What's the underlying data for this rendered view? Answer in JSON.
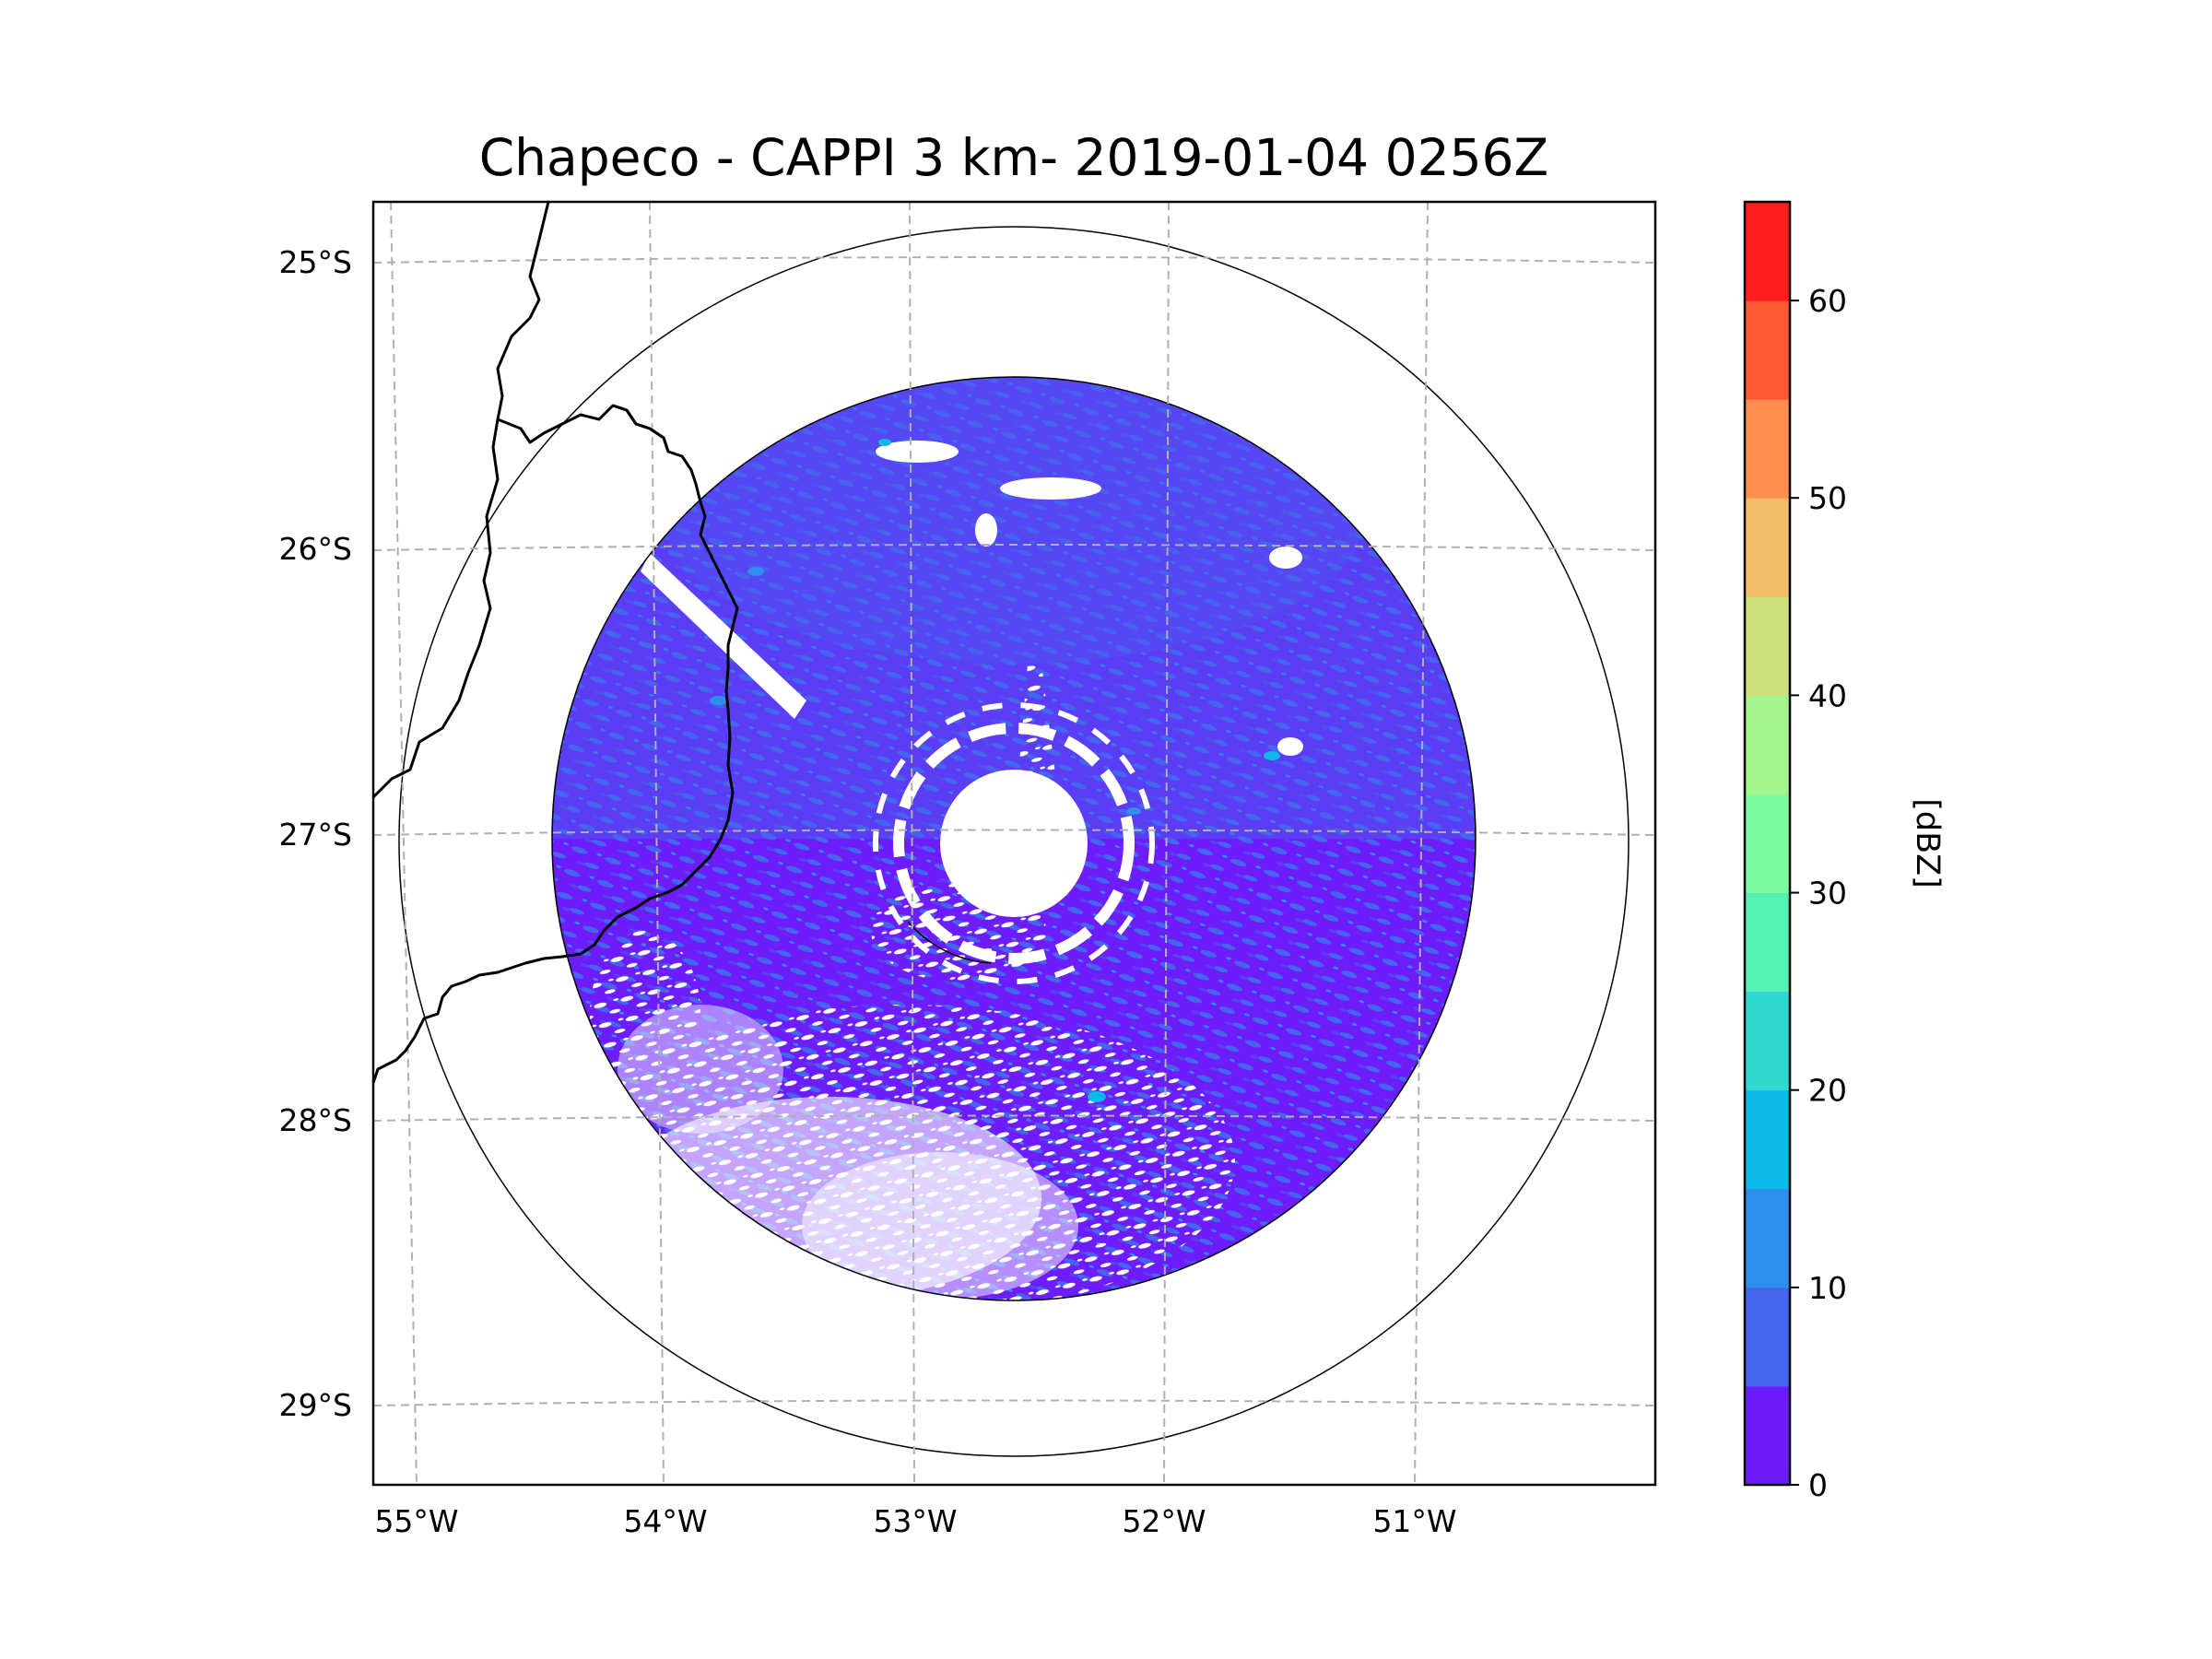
{
  "chart_data": {
    "type": "heatmap",
    "title": "Chapeco - CAPPI 3 km- 2019-01-04 0256Z",
    "x_ticks": [
      "55°W",
      "54°W",
      "53°W",
      "52°W",
      "51°W"
    ],
    "y_ticks": [
      "25°S",
      "26°S",
      "27°S",
      "28°S",
      "29°S"
    ],
    "x_range_deg": [
      -55.2,
      -50.0
    ],
    "y_range_deg": [
      -29.3,
      -24.8
    ],
    "grid": "dashed",
    "radar_site": {
      "lon": -52.6,
      "lat": -27.0
    },
    "range_rings": [
      "inner data range",
      "outer range ring"
    ],
    "colorbar": {
      "label": "[dBZ]",
      "min": 0,
      "max": 65,
      "step": 5,
      "tick_values": [
        0,
        10,
        20,
        30,
        40,
        50,
        60
      ],
      "tick_labels": [
        "0",
        "10",
        "20",
        "30",
        "40",
        "50",
        "60"
      ],
      "colors": [
        "#6c1dfa",
        "#4466ee",
        "#2d8eec",
        "#0cb9e6",
        "#30d8d2",
        "#54f2b6",
        "#7dfca0",
        "#a3f58c",
        "#cee07b",
        "#f3be6a",
        "#ff8e50",
        "#ff5a35",
        "#ff1d1d"
      ]
    },
    "observed_levels": [
      {
        "range": "0-5 dBZ",
        "coverage": "dominant"
      },
      {
        "range": "5-10 dBZ",
        "coverage": "widespread"
      },
      {
        "range": "10-20 dBZ",
        "coverage": "scattered"
      },
      {
        "range": "no echo",
        "coverage": "southern sector gaps, central clutter rings, NW beam block"
      }
    ]
  }
}
